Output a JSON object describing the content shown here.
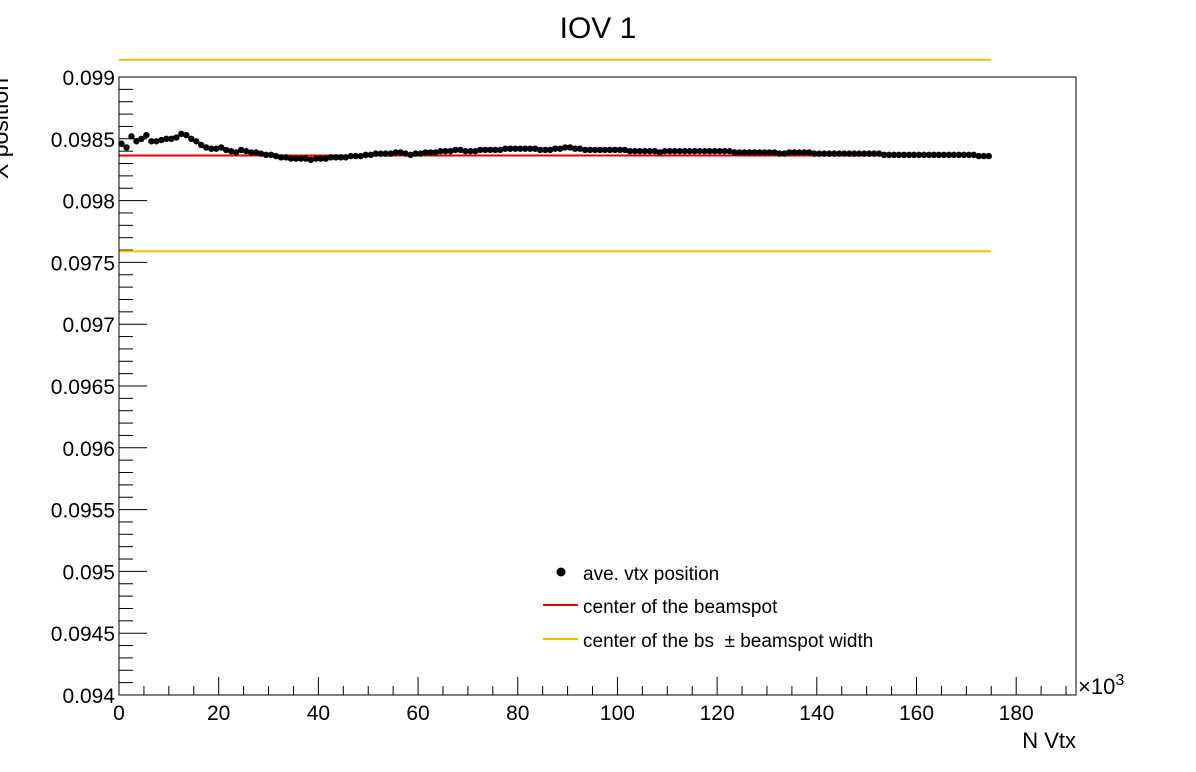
{
  "colors": {
    "markers": "#000000",
    "center_line": "#e00000",
    "width_lines": "#f5c000",
    "frame": "#000000",
    "background": "#ffffff"
  },
  "chart_data": {
    "type": "scatter",
    "title": "IOV 1",
    "xlabel": "N Vtx",
    "ylabel": "X position",
    "x_multiplier_label": "×10",
    "x_multiplier_exp": "3",
    "xlim": [
      0,
      192
    ],
    "ylim": [
      0.094,
      0.099
    ],
    "x_ticks": [
      "0",
      "20",
      "40",
      "60",
      "80",
      "100",
      "120",
      "140",
      "160",
      "180"
    ],
    "x_tick_values": [
      0,
      20,
      40,
      60,
      80,
      100,
      120,
      140,
      160,
      180
    ],
    "y_ticks": [
      "0.094",
      "0.0945",
      "0.095",
      "0.0955",
      "0.096",
      "0.0965",
      "0.097",
      "0.0975",
      "0.098",
      "0.0985",
      "0.099"
    ],
    "y_tick_values": [
      0.094,
      0.0945,
      0.095,
      0.0955,
      0.096,
      0.0965,
      0.097,
      0.0975,
      0.098,
      0.0985,
      0.099
    ],
    "grid": false,
    "legend_placement": "bottom-center",
    "series": [
      {
        "name": "ave. vtx position",
        "kind": "points",
        "x": [
          0.5,
          1.5,
          2.5,
          3.5,
          4.5,
          5.5,
          6.5,
          7.5,
          8.5,
          9.5,
          10.5,
          11.5,
          12.5,
          13.5,
          14.5,
          15.5,
          16.5,
          17.5,
          18.5,
          19.5,
          20.5,
          21.5,
          22.5,
          23.5,
          24.5,
          25.5,
          26.5,
          27.5,
          28.5,
          29.5,
          30.5,
          31.5,
          32.5,
          33.5,
          34.5,
          35.5,
          36.5,
          37.5,
          38.5,
          39.5,
          40.5,
          41.5,
          42.5,
          43.5,
          44.5,
          45.5,
          46.5,
          47.5,
          48.5,
          49.5,
          50.5,
          51.5,
          52.5,
          53.5,
          54.5,
          55.5,
          56.5,
          57.5,
          58.5,
          59.5,
          60.5,
          61.5,
          62.5,
          63.5,
          64.5,
          65.5,
          66.5,
          67.5,
          68.5,
          69.5,
          70.5,
          71.5,
          72.5,
          73.5,
          74.5,
          75.5,
          76.5,
          77.5,
          78.5,
          79.5,
          80.5,
          81.5,
          82.5,
          83.5,
          84.5,
          85.5,
          86.5,
          87.5,
          88.5,
          89.5,
          90.5,
          91.5,
          92.5,
          93.5,
          94.5,
          95.5,
          96.5,
          97.5,
          98.5,
          99.5,
          100.5,
          101.5,
          102.5,
          103.5,
          104.5,
          105.5,
          106.5,
          107.5,
          108.5,
          109.5,
          110.5,
          111.5,
          112.5,
          113.5,
          114.5,
          115.5,
          116.5,
          117.5,
          118.5,
          119.5,
          120.5,
          121.5,
          122.5,
          123.5,
          124.5,
          125.5,
          126.5,
          127.5,
          128.5,
          129.5,
          130.5,
          131.5,
          132.5,
          133.5,
          134.5,
          135.5,
          136.5,
          137.5,
          138.5,
          139.5,
          140.5,
          141.5,
          142.5,
          143.5,
          144.5,
          145.5,
          146.5,
          147.5,
          148.5,
          149.5,
          150.5,
          151.5,
          152.5,
          153.5,
          154.5,
          155.5,
          156.5,
          157.5,
          158.5,
          159.5,
          160.5,
          161.5,
          162.5,
          163.5,
          164.5,
          165.5,
          166.5,
          167.5,
          168.5,
          169.5,
          170.5,
          171.5,
          172.5,
          173.5,
          174.5
        ],
        "y": [
          0.09846,
          0.09843,
          0.09852,
          0.09848,
          0.0985,
          0.09853,
          0.09848,
          0.09848,
          0.09849,
          0.0985,
          0.0985,
          0.09851,
          0.09854,
          0.09853,
          0.0985,
          0.09848,
          0.09845,
          0.09843,
          0.09842,
          0.09842,
          0.09843,
          0.09841,
          0.0984,
          0.09839,
          0.09841,
          0.0984,
          0.09839,
          0.09839,
          0.09838,
          0.09837,
          0.09837,
          0.09836,
          0.09835,
          0.09835,
          0.09834,
          0.09834,
          0.09834,
          0.09834,
          0.09833,
          0.09834,
          0.09834,
          0.09834,
          0.09835,
          0.09835,
          0.09835,
          0.09835,
          0.09836,
          0.09836,
          0.09836,
          0.09837,
          0.09837,
          0.09838,
          0.09838,
          0.09838,
          0.09838,
          0.09839,
          0.09839,
          0.09838,
          0.09837,
          0.09838,
          0.09838,
          0.09839,
          0.09839,
          0.09839,
          0.0984,
          0.0984,
          0.0984,
          0.09841,
          0.09841,
          0.0984,
          0.0984,
          0.0984,
          0.09841,
          0.09841,
          0.09841,
          0.09841,
          0.09841,
          0.09842,
          0.09842,
          0.09842,
          0.09842,
          0.09842,
          0.09842,
          0.09842,
          0.09841,
          0.09841,
          0.09841,
          0.09842,
          0.09842,
          0.09843,
          0.09843,
          0.09842,
          0.09842,
          0.09841,
          0.09841,
          0.09841,
          0.09841,
          0.09841,
          0.09841,
          0.09841,
          0.09841,
          0.09841,
          0.0984,
          0.0984,
          0.0984,
          0.0984,
          0.0984,
          0.0984,
          0.09839,
          0.0984,
          0.0984,
          0.0984,
          0.0984,
          0.0984,
          0.0984,
          0.0984,
          0.0984,
          0.0984,
          0.0984,
          0.0984,
          0.0984,
          0.0984,
          0.0984,
          0.09839,
          0.09839,
          0.09839,
          0.09839,
          0.09839,
          0.09839,
          0.09839,
          0.09839,
          0.09839,
          0.09838,
          0.09838,
          0.09839,
          0.09839,
          0.09839,
          0.09839,
          0.09839,
          0.09838,
          0.09838,
          0.09838,
          0.09838,
          0.09838,
          0.09838,
          0.09838,
          0.09838,
          0.09838,
          0.09838,
          0.09838,
          0.09838,
          0.09838,
          0.09838,
          0.09837,
          0.09837,
          0.09837,
          0.09837,
          0.09837,
          0.09837,
          0.09837,
          0.09837,
          0.09837,
          0.09837,
          0.09837,
          0.09837,
          0.09837,
          0.09837,
          0.09837,
          0.09837,
          0.09837,
          0.09837,
          0.09837,
          0.09836,
          0.09836,
          0.09836
        ]
      },
      {
        "name": "center of the beamspot",
        "kind": "hline",
        "y": 0.098365,
        "x_range": [
          0,
          175
        ]
      },
      {
        "name": "center of the bs  ± beamspot width",
        "kind": "hlines",
        "y": [
          0.09914,
          0.09759
        ],
        "x_range": [
          0,
          175
        ]
      }
    ]
  }
}
